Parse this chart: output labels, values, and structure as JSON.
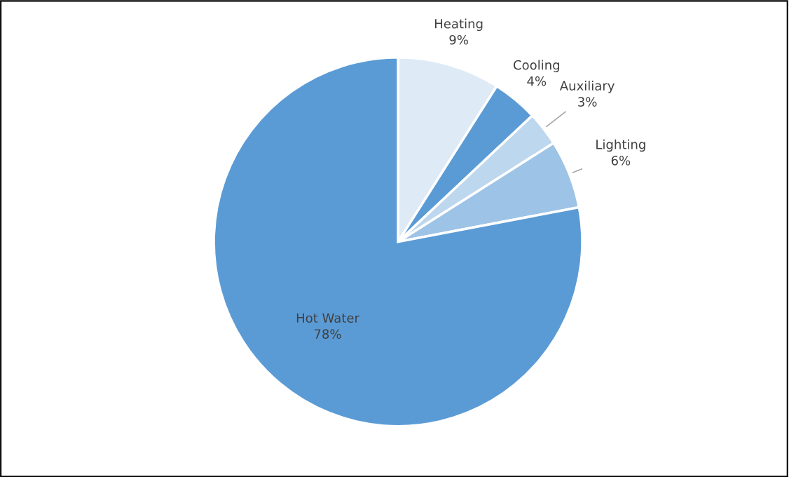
{
  "chart_data": {
    "type": "pie",
    "categories": [
      "Heating",
      "Cooling",
      "Auxiliary",
      "Lighting",
      "Hot Water"
    ],
    "values": [
      9,
      4,
      3,
      6,
      78
    ],
    "value_labels": [
      "9%",
      "4%",
      "3%",
      "6%",
      "78%"
    ],
    "colors": [
      "#deeaf6",
      "#5b9bd5",
      "#bdd7ee",
      "#9dc3e6",
      "#5b9bd5"
    ]
  }
}
